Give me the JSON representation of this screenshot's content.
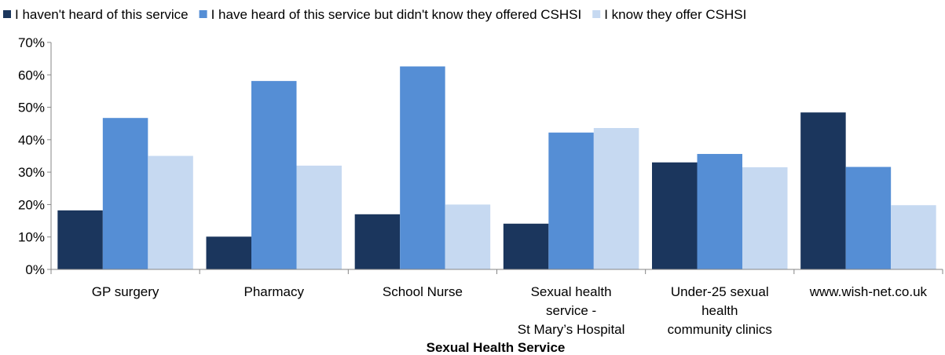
{
  "chart_data": {
    "type": "bar",
    "title": "",
    "xlabel": "Sexual Health Service",
    "ylabel": "",
    "ylim": [
      0,
      70
    ],
    "y_ticks": [
      "0%",
      "10%",
      "20%",
      "30%",
      "40%",
      "50%",
      "60%",
      "70%"
    ],
    "legend_position": "top",
    "grid": false,
    "categories": [
      [
        "GP surgery"
      ],
      [
        "Pharmacy"
      ],
      [
        "School Nurse"
      ],
      [
        "Sexual health",
        "service -",
        "St Mary’s Hospital"
      ],
      [
        "Under-25 sexual",
        "health",
        "community clinics"
      ],
      [
        "www.wish-net.co.uk"
      ]
    ],
    "series": [
      {
        "name": "I haven't heard of this service",
        "color": "#1b365d",
        "values": [
          18.2,
          10.1,
          17.0,
          14.1,
          33.0,
          48.4
        ]
      },
      {
        "name": "I have heard of this service but didn't know they offered CSHSI",
        "color": "#558ed5",
        "values": [
          46.7,
          58.1,
          62.6,
          42.2,
          35.6,
          31.6
        ]
      },
      {
        "name": "I know they offer CSHSI",
        "color": "#c6d9f1",
        "values": [
          35.0,
          32.0,
          20.0,
          43.6,
          31.5,
          19.8
        ]
      }
    ]
  }
}
